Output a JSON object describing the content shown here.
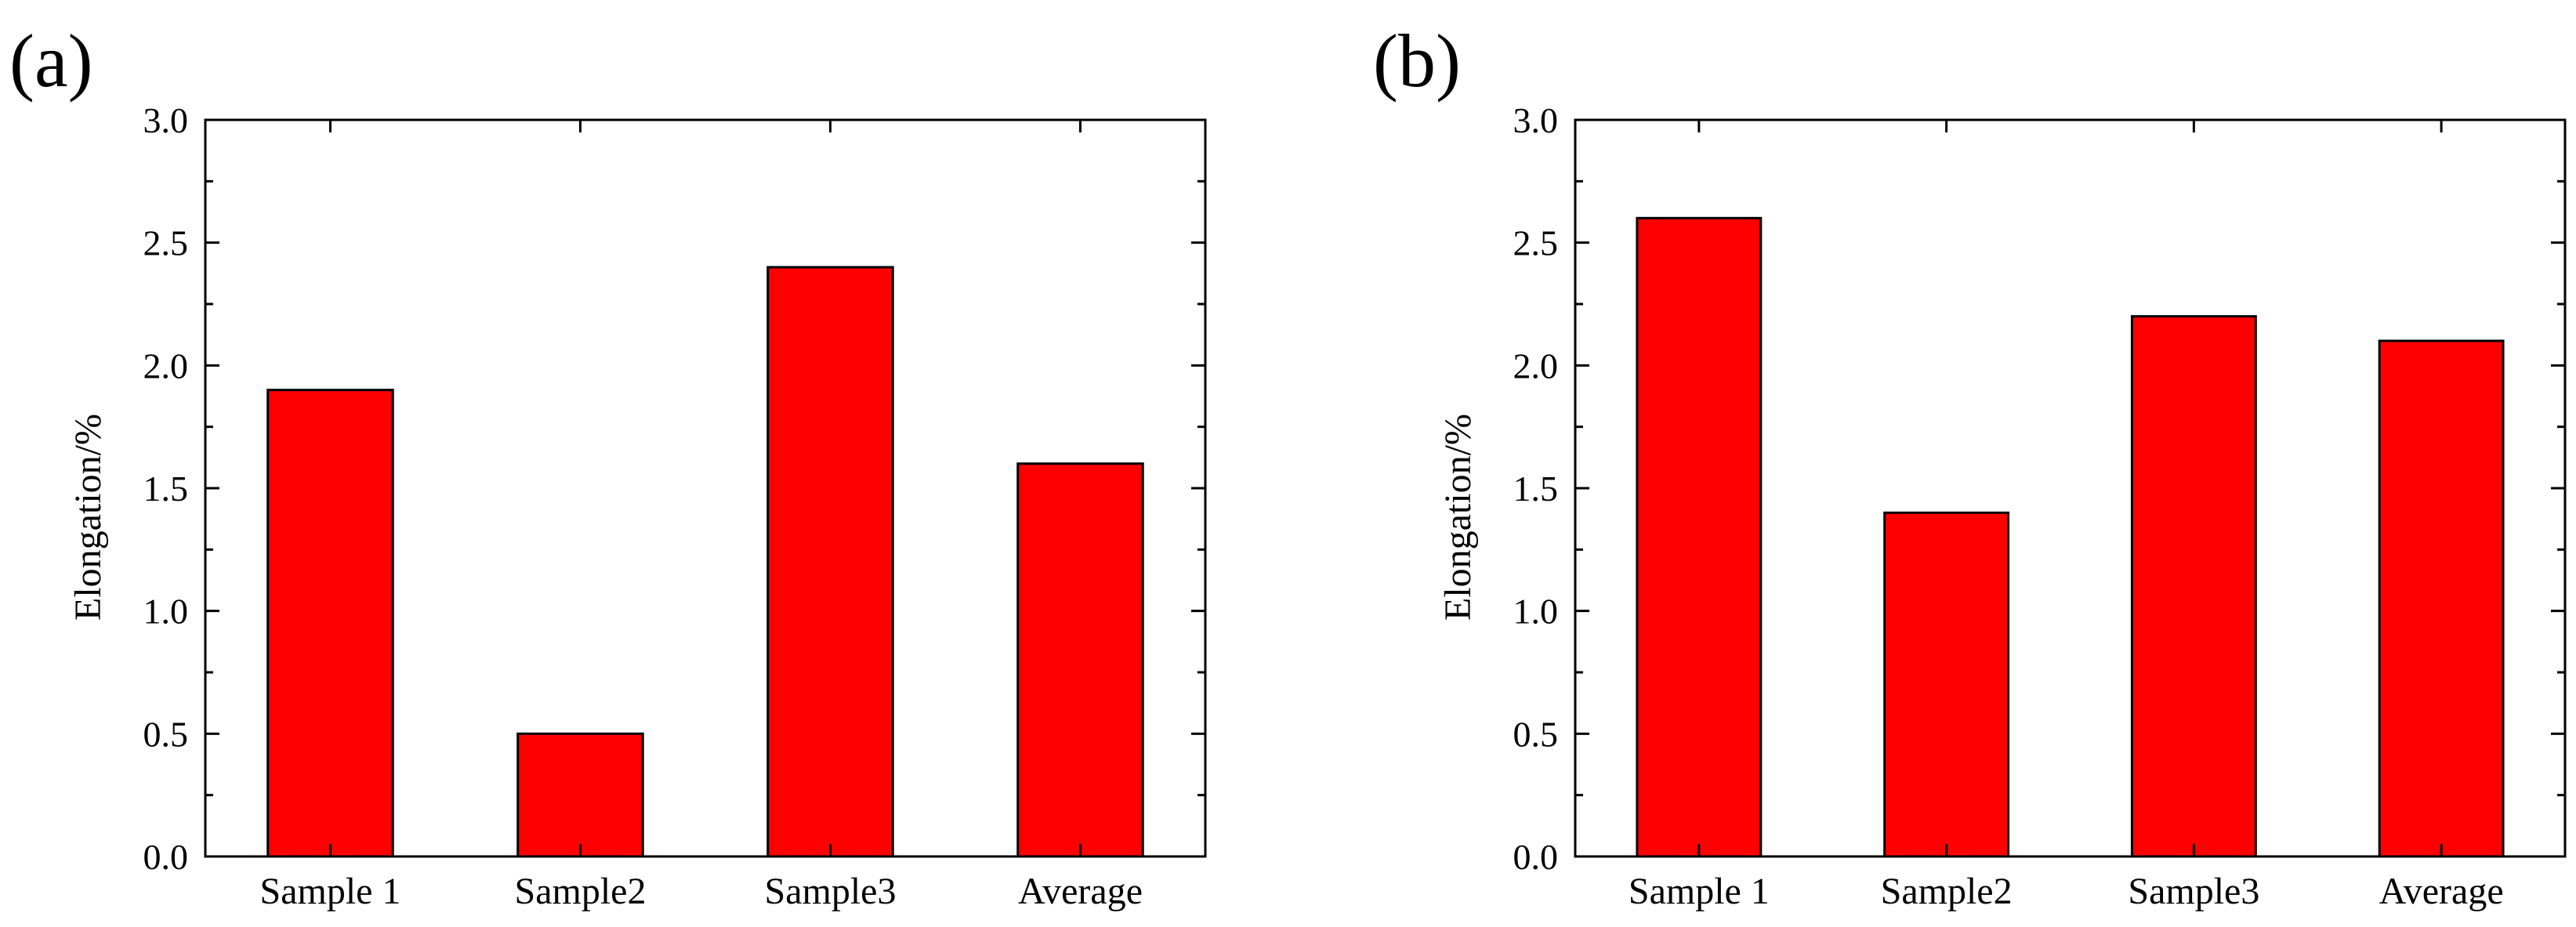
{
  "chart_data": [
    {
      "type": "bar",
      "panel_label": "(a)",
      "categories": [
        "Sample 1",
        "Sample2",
        "Sample3",
        "Average"
      ],
      "values": [
        1.9,
        0.5,
        2.4,
        1.6
      ],
      "ylabel": "Elongation/%",
      "xlabel": "",
      "ylim": [
        0,
        3.0
      ],
      "yticks": [
        "0.0",
        "0.5",
        "1.0",
        "1.5",
        "2.0",
        "2.5",
        "3.0"
      ],
      "bar_color": "#ff0000",
      "grid": false
    },
    {
      "type": "bar",
      "panel_label": "(b)",
      "categories": [
        "Sample 1",
        "Sample2",
        "Sample3",
        "Average"
      ],
      "values": [
        2.6,
        1.4,
        2.2,
        2.1
      ],
      "ylabel": "Elongation/%",
      "xlabel": "",
      "ylim": [
        0,
        3.0
      ],
      "yticks": [
        "0.0",
        "0.5",
        "1.0",
        "1.5",
        "2.0",
        "2.5",
        "3.0"
      ],
      "bar_color": "#ff0000",
      "grid": false
    }
  ]
}
